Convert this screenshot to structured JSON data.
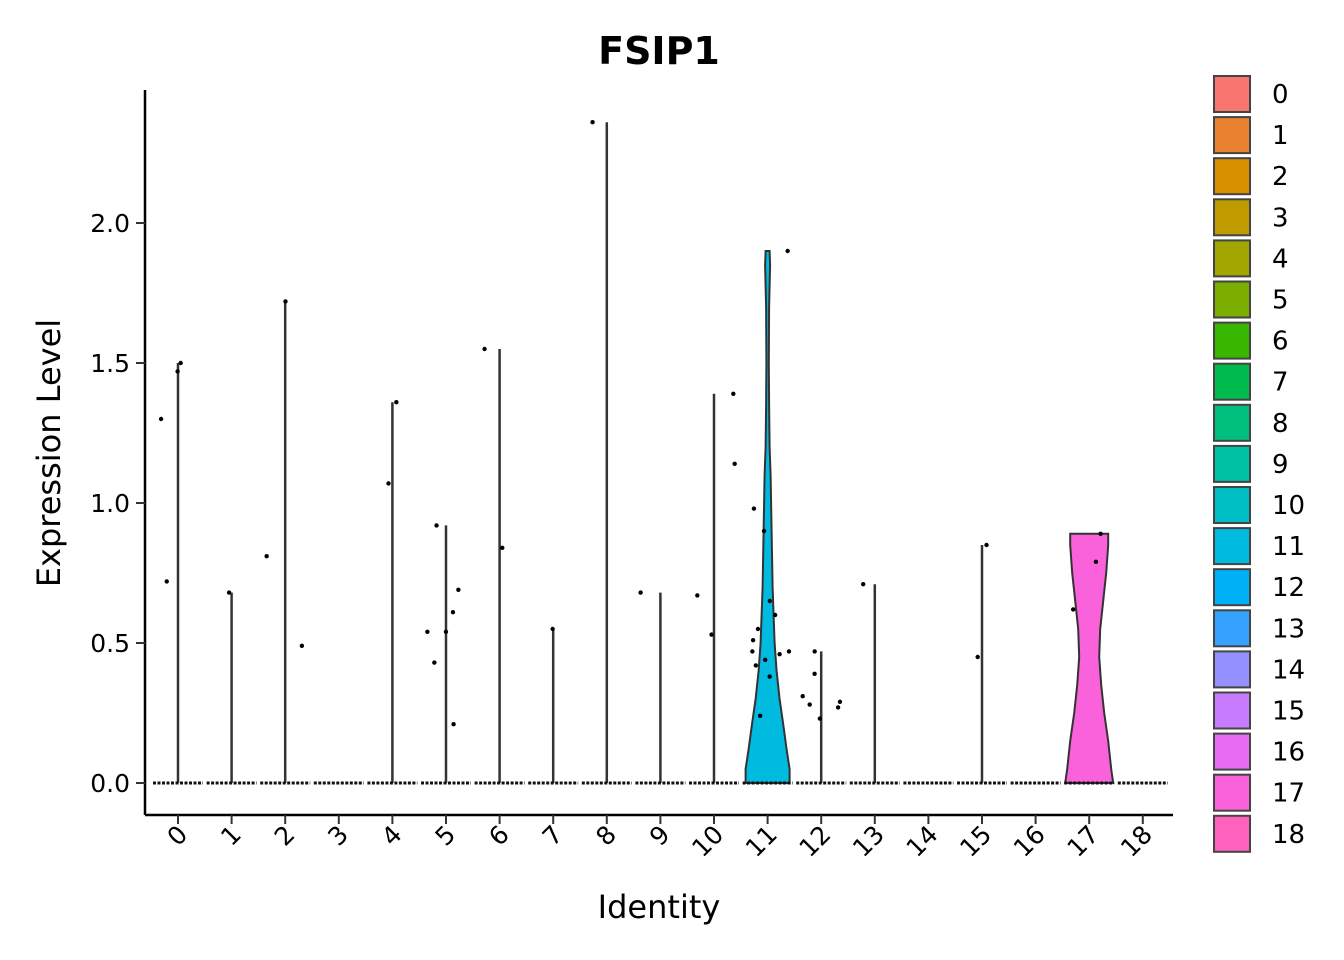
{
  "chart_data": {
    "type": "violin",
    "title": "FSIP1",
    "xlabel": "Identity",
    "ylabel": "Expression Level",
    "ylim": [
      -0.12,
      2.47
    ],
    "yticks": [
      0.0,
      0.5,
      1.0,
      1.5,
      2.0
    ],
    "ytick_labels": [
      "0.0",
      "0.5",
      "1.0",
      "1.5",
      "2.0"
    ],
    "categories": [
      "0",
      "1",
      "2",
      "3",
      "4",
      "5",
      "6",
      "7",
      "8",
      "9",
      "10",
      "11",
      "12",
      "13",
      "14",
      "15",
      "16",
      "17",
      "18"
    ],
    "colors": [
      "#F8766D",
      "#EA8331",
      "#D89000",
      "#C09B00",
      "#A3A500",
      "#7CAE00",
      "#39B600",
      "#00BB4E",
      "#00BF7D",
      "#00C1A3",
      "#00BFC4",
      "#00BAE0",
      "#00B0F6",
      "#35A2FF",
      "#9590FF",
      "#C77CFF",
      "#E76BF3",
      "#FA62DB",
      "#FF62BC"
    ],
    "max_values": [
      1.5,
      0.68,
      1.72,
      0,
      1.36,
      0.92,
      1.55,
      0.55,
      2.36,
      0.68,
      1.39,
      1.9,
      0.47,
      0.71,
      0,
      0.85,
      0,
      0.89,
      0
    ],
    "nonzero_points": [
      [
        1.47,
        1.5,
        1.3,
        0.72
      ],
      [
        0.68
      ],
      [
        1.72,
        0.81,
        0.49
      ],
      [],
      [
        1.36,
        1.07
      ],
      [
        0.92,
        0.69,
        0.61,
        0.54,
        0.54,
        0.43,
        0.21
      ],
      [
        1.55,
        0.84
      ],
      [
        0.55
      ],
      [
        2.36
      ],
      [
        0.68
      ],
      [
        1.39,
        1.14,
        0.67,
        0.53
      ],
      [
        1.9,
        0.98,
        0.9,
        0.65,
        0.6,
        0.55,
        0.51,
        0.47,
        0.44,
        0.42,
        0.38,
        0.24,
        0.47,
        0.46
      ],
      [
        0.47,
        0.39,
        0.31,
        0.29,
        0.28,
        0.27,
        0.23
      ],
      [
        0.71
      ],
      [],
      [
        0.85,
        0.45
      ],
      [],
      [
        0.89,
        0.79,
        0.62
      ],
      []
    ],
    "legend": {
      "position": "right",
      "entries": [
        "0",
        "1",
        "2",
        "3",
        "4",
        "5",
        "6",
        "7",
        "8",
        "9",
        "10",
        "11",
        "12",
        "13",
        "14",
        "15",
        "16",
        "17",
        "18"
      ]
    },
    "grid": false
  }
}
